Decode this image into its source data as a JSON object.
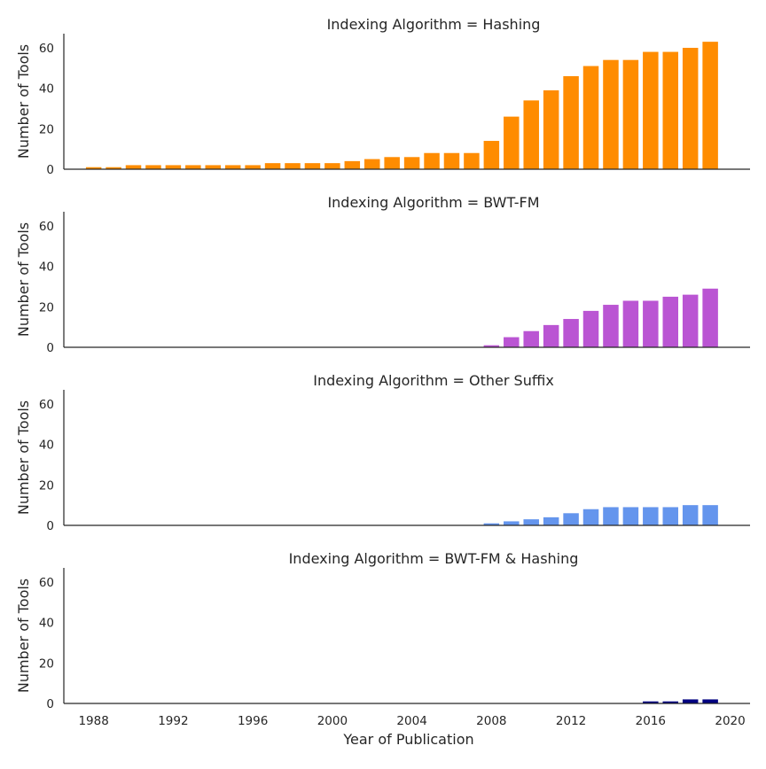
{
  "chart_data": {
    "type": "bar",
    "xlabel": "Year of Publication",
    "ylabel": "Number of Tools",
    "x_ticks": [
      "1988",
      "1992",
      "1996",
      "2000",
      "2004",
      "2008",
      "2012",
      "2016",
      "2020"
    ],
    "y_ticks": [
      "0",
      "20",
      "40",
      "60"
    ],
    "xlim": [
      1986.5,
      2021
    ],
    "ylim": [
      0,
      67
    ],
    "grid": false,
    "legend": "none",
    "panels": [
      {
        "title": "Indexing Algorithm = Hashing",
        "color": "#FF8C00",
        "x": [
          1988,
          1989,
          1990,
          1991,
          1992,
          1993,
          1994,
          1995,
          1996,
          1997,
          1998,
          1999,
          2000,
          2001,
          2002,
          2003,
          2004,
          2005,
          2006,
          2007,
          2008,
          2009,
          2010,
          2011,
          2012,
          2013,
          2014,
          2015,
          2016,
          2017,
          2018,
          2019
        ],
        "values": [
          1,
          1,
          2,
          2,
          2,
          2,
          2,
          2,
          2,
          3,
          3,
          3,
          3,
          4,
          5,
          6,
          6,
          8,
          8,
          8,
          14,
          26,
          34,
          39,
          46,
          51,
          54,
          54,
          58,
          58,
          60,
          63
        ]
      },
      {
        "title": "Indexing Algorithm = BWT-FM",
        "color": "#BA55D3",
        "x": [
          2008,
          2009,
          2010,
          2011,
          2012,
          2013,
          2014,
          2015,
          2016,
          2017,
          2018,
          2019
        ],
        "values": [
          1,
          5,
          8,
          11,
          14,
          18,
          21,
          23,
          23,
          25,
          26,
          29
        ]
      },
      {
        "title": "Indexing Algorithm = Other Suffix",
        "color": "#6495ED",
        "x": [
          2008,
          2009,
          2010,
          2011,
          2012,
          2013,
          2014,
          2015,
          2016,
          2017,
          2018,
          2019
        ],
        "values": [
          1,
          2,
          3,
          4,
          6,
          8,
          9,
          9,
          9,
          9,
          10,
          10
        ]
      },
      {
        "title": "Indexing Algorithm = BWT-FM & Hashing",
        "color": "#000080",
        "x": [
          2016,
          2017,
          2018,
          2019
        ],
        "values": [
          1,
          1,
          2,
          2
        ]
      }
    ]
  }
}
